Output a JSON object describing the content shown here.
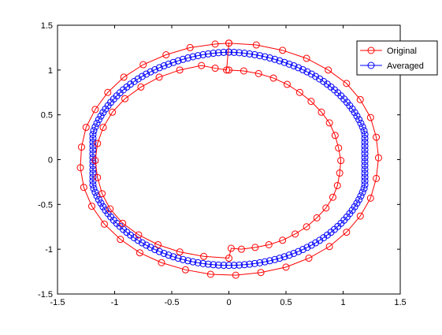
{
  "chart_data": {
    "type": "line",
    "xlim": [
      -1.5,
      1.5
    ],
    "ylim": [
      -1.5,
      1.5
    ],
    "x_ticks": [
      "-1.5",
      "-1",
      "-0.5",
      "0",
      "0.5",
      "1",
      "1.5"
    ],
    "y_ticks": [
      "-1.5",
      "-1",
      "-0.5",
      "0",
      "0.5",
      "1",
      "1.5"
    ],
    "grid": false,
    "legend_position": "top-right",
    "series": [
      {
        "name": "Original",
        "color": "#ff0000",
        "marker": "circle",
        "points": [
          [
            0.0,
            1.0
          ],
          [
            0.13,
            0.99
          ],
          [
            0.26,
            0.96
          ],
          [
            0.39,
            0.91
          ],
          [
            0.51,
            0.84
          ],
          [
            0.62,
            0.75
          ],
          [
            0.72,
            0.65
          ],
          [
            0.81,
            0.53
          ],
          [
            0.88,
            0.41
          ],
          [
            0.93,
            0.27
          ],
          [
            0.96,
            0.13
          ],
          [
            0.98,
            -0.01
          ],
          [
            0.97,
            -0.15
          ],
          [
            0.95,
            -0.29
          ],
          [
            0.91,
            -0.42
          ],
          [
            0.85,
            -0.54
          ],
          [
            0.77,
            -0.65
          ],
          [
            0.68,
            -0.75
          ],
          [
            0.58,
            -0.83
          ],
          [
            0.47,
            -0.9
          ],
          [
            0.35,
            -0.95
          ],
          [
            0.23,
            -0.98
          ],
          [
            0.11,
            -1.0
          ],
          [
            0.02,
            -0.99
          ],
          [
            0.0,
            -1.1
          ],
          [
            -0.22,
            -1.08
          ],
          [
            -0.43,
            -1.03
          ],
          [
            -0.62,
            -0.95
          ],
          [
            -0.79,
            -0.84
          ],
          [
            -0.93,
            -0.71
          ],
          [
            -1.04,
            -0.55
          ],
          [
            -1.11,
            -0.38
          ],
          [
            -1.15,
            -0.2
          ],
          [
            -1.17,
            -0.01
          ],
          [
            -1.15,
            0.18
          ],
          [
            -1.1,
            0.36
          ],
          [
            -1.02,
            0.53
          ],
          [
            -0.91,
            0.68
          ],
          [
            -0.77,
            0.81
          ],
          [
            -0.61,
            0.92
          ],
          [
            -0.43,
            1.0
          ],
          [
            -0.24,
            1.05
          ],
          [
            -0.12,
            1.02
          ],
          [
            -0.02,
            1.0
          ],
          [
            0.0,
            1.3
          ],
          [
            0.24,
            1.28
          ],
          [
            0.47,
            1.22
          ],
          [
            0.68,
            1.13
          ],
          [
            0.87,
            1.0
          ],
          [
            1.03,
            0.85
          ],
          [
            1.15,
            0.67
          ],
          [
            1.24,
            0.47
          ],
          [
            1.29,
            0.25
          ],
          [
            1.31,
            0.02
          ],
          [
            1.29,
            -0.21
          ],
          [
            1.24,
            -0.43
          ],
          [
            1.15,
            -0.63
          ],
          [
            1.03,
            -0.81
          ],
          [
            0.88,
            -0.97
          ],
          [
            0.7,
            -1.1
          ],
          [
            0.5,
            -1.2
          ],
          [
            0.28,
            -1.26
          ],
          [
            0.06,
            -1.29
          ],
          [
            -0.16,
            -1.28
          ],
          [
            -0.38,
            -1.23
          ],
          [
            -0.59,
            -1.15
          ],
          [
            -0.78,
            -1.04
          ],
          [
            -0.95,
            -0.89
          ],
          [
            -1.09,
            -0.72
          ],
          [
            -1.2,
            -0.52
          ],
          [
            -1.27,
            -0.31
          ],
          [
            -1.3,
            -0.09
          ],
          [
            -1.29,
            0.14
          ],
          [
            -1.25,
            0.36
          ],
          [
            -1.17,
            0.56
          ],
          [
            -1.06,
            0.75
          ],
          [
            -0.92,
            0.92
          ],
          [
            -0.75,
            1.06
          ],
          [
            -0.55,
            1.17
          ],
          [
            -0.34,
            1.25
          ],
          [
            -0.12,
            1.29
          ],
          [
            0.0,
            1.3
          ]
        ]
      },
      {
        "name": "Averaged",
        "color": "#0000ff",
        "marker": "circle",
        "shape": "closed loop approx. x in [-1.2, 1.2], y in [-1.2, 1.2] with vertical segments at x = -1.2 and x = 1.2 and a cusp at (0, 1.2)"
      }
    ]
  }
}
